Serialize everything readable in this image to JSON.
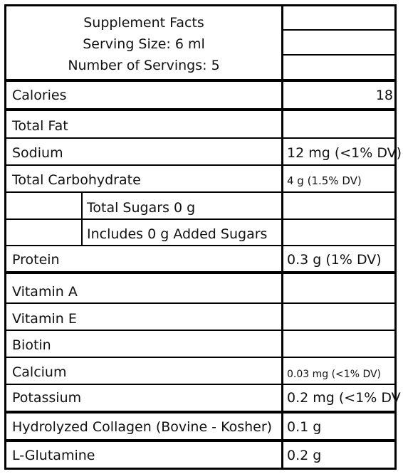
{
  "header": {
    "title": "Supplement Facts",
    "serving_size": "Serving Size: 6 ml",
    "servings": "Number of Servings: 5"
  },
  "rows": {
    "calories": {
      "label": "Calories",
      "value": "18"
    },
    "total_fat": {
      "label": "Total Fat",
      "value": ""
    },
    "sodium": {
      "label": "Sodium",
      "value": "12 mg (<1% DV)"
    },
    "total_carb": {
      "label": "Total Carbohydrate",
      "value": "4 g (1.5% DV)"
    },
    "total_sugars": {
      "label": "Total Sugars 0 g",
      "value": ""
    },
    "added_sugars": {
      "label": "Includes 0 g Added Sugars",
      "value": ""
    },
    "protein": {
      "label": "Protein",
      "value": "0.3 g (1% DV)"
    },
    "vitamin_a": {
      "label": "Vitamin A",
      "value": ""
    },
    "vitamin_e": {
      "label": "Vitamin E",
      "value": ""
    },
    "biotin": {
      "label": "Biotin",
      "value": ""
    },
    "calcium": {
      "label": "Calcium",
      "value": "0.03 mg (<1% DV)"
    },
    "potassium": {
      "label": "Potassium",
      "value": "0.2 mg (<1% DV"
    },
    "collagen": {
      "label": "Hydrolyzed Collagen (Bovine - Kosher)",
      "value": "0.1 g"
    },
    "glutamine": {
      "label": "L-Glutamine",
      "value": "0.2 g"
    }
  }
}
